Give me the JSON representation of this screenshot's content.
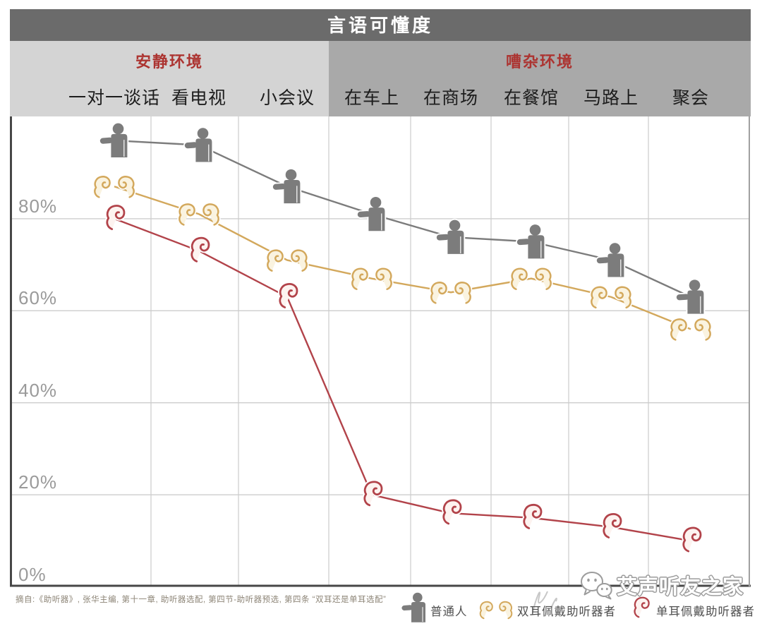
{
  "title": "言语可懂度",
  "header": {
    "quiet": {
      "label": "安静环境",
      "categories": [
        "一对一谈话",
        "看电视",
        "小会议"
      ]
    },
    "noisy": {
      "label": "嘈杂环境",
      "categories": [
        "在车上",
        "在商场",
        "在餐馆",
        "马路上",
        "聚会"
      ]
    }
  },
  "y_axis_labels": [
    "80%",
    "60%",
    "40%",
    "20%",
    "0%"
  ],
  "chart_data": {
    "type": "line",
    "title": "言语可懂度",
    "categories": [
      "一对一谈话",
      "看电视",
      "小会议",
      "在车上",
      "在商场",
      "在餐馆",
      "马路上",
      "聚会"
    ],
    "category_groups": {
      "安静环境": [
        "一对一谈话",
        "看电视",
        "小会议"
      ],
      "嘈杂环境": [
        "在车上",
        "在商场",
        "在餐馆",
        "马路上",
        "聚会"
      ]
    },
    "unit": "%",
    "ylim": [
      0,
      100
    ],
    "y_ticks": [
      0,
      20,
      40,
      60,
      80
    ],
    "grid": true,
    "legend_position": "bottom",
    "series": [
      {
        "name": "普通人",
        "marker": "person-icon",
        "color": "#7c7c7c",
        "values": [
          97,
          96,
          87,
          81,
          76,
          75,
          71,
          63
        ]
      },
      {
        "name": "双耳佩戴助听器者",
        "marker": "ears-pair-icon",
        "color": "#d3a85c",
        "values": [
          87,
          81,
          71,
          67,
          64,
          67,
          63,
          56
        ]
      },
      {
        "name": "单耳佩戴助听器者",
        "marker": "ear-single-icon",
        "color": "#b2434a",
        "values": [
          80,
          73,
          63,
          20,
          16,
          15,
          13,
          10
        ]
      }
    ]
  },
  "footer": {
    "source": "摘自:《助听器》, 张华主编, 第十一章, 助听器选配, 第四节-助听器预选, 第四条 “双耳还是单耳选配”"
  },
  "watermark": {
    "text": "艾声听友之家"
  },
  "colors": {
    "banner_bg": "#6b6b6b",
    "banner_text": "#ffffff",
    "quiet_bg": "#d4d4d4",
    "noisy_bg": "#a9a9a9",
    "section_label": "#ac3431",
    "category_text": "#1d1d1d",
    "grid": "#cfcfcf",
    "axis_label": "#9a9a9a",
    "border": "#474747",
    "series_normal": "#7c7c7c",
    "series_binaural": "#d3a85c",
    "series_monaural": "#b2434a"
  }
}
